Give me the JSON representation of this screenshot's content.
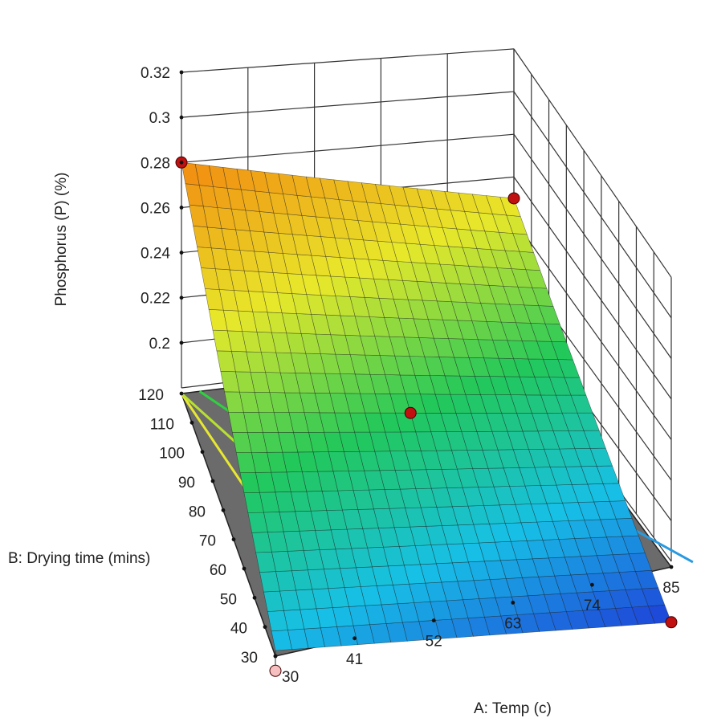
{
  "chart_data": {
    "type": "surface3d",
    "title": "",
    "xlabel": "A: Temp (c)",
    "ylabel": "B: Drying time (mins)",
    "zlabel": "Phosphorus (P) (%)",
    "x_ticks": [
      30,
      41,
      52,
      63,
      74,
      85
    ],
    "y_ticks": [
      30,
      40,
      50,
      60,
      70,
      80,
      90,
      100,
      110,
      120
    ],
    "z_ticks": [
      0.2,
      0.22,
      0.24,
      0.26,
      0.28,
      0.3,
      0.32
    ],
    "xlim": [
      30,
      85
    ],
    "ylim": [
      30,
      120
    ],
    "zlim": [
      0.18,
      0.32
    ],
    "grid": true,
    "surface": {
      "model": "linear",
      "corners": [
        {
          "x": 30,
          "y": 30,
          "z": 0.18
        },
        {
          "x": 30,
          "y": 120,
          "z": 0.28
        },
        {
          "x": 85,
          "y": 120,
          "z": 0.25
        },
        {
          "x": 85,
          "y": 30,
          "z": 0.15
        }
      ],
      "colormap": [
        "#1f3fd8",
        "#17c0e6",
        "#22c85a",
        "#e8e82a",
        "#f28a10"
      ]
    },
    "design_points": [
      {
        "x": 30,
        "y": 120,
        "z": 0.28,
        "above_surface": true
      },
      {
        "x": 85,
        "y": 120,
        "z": 0.25,
        "above_surface": true
      },
      {
        "x": 57.5,
        "y": 75,
        "z": 0.215,
        "above_surface": true
      },
      {
        "x": 85,
        "y": 30,
        "z": 0.15,
        "above_surface": true
      },
      {
        "x": 30,
        "y": 30,
        "z": 0.17,
        "above_surface": false
      }
    ],
    "contours": [
      {
        "x_at_y30": 40,
        "color": "#e8e830"
      },
      {
        "x_at_y30": 52,
        "color": "#b8e030"
      },
      {
        "x_at_y30": 63,
        "color": "#30d040"
      },
      {
        "x_at_y30": 76,
        "color": "#20c8b0"
      },
      {
        "x_at_y30": 88,
        "color": "#2a9ae0"
      }
    ]
  }
}
